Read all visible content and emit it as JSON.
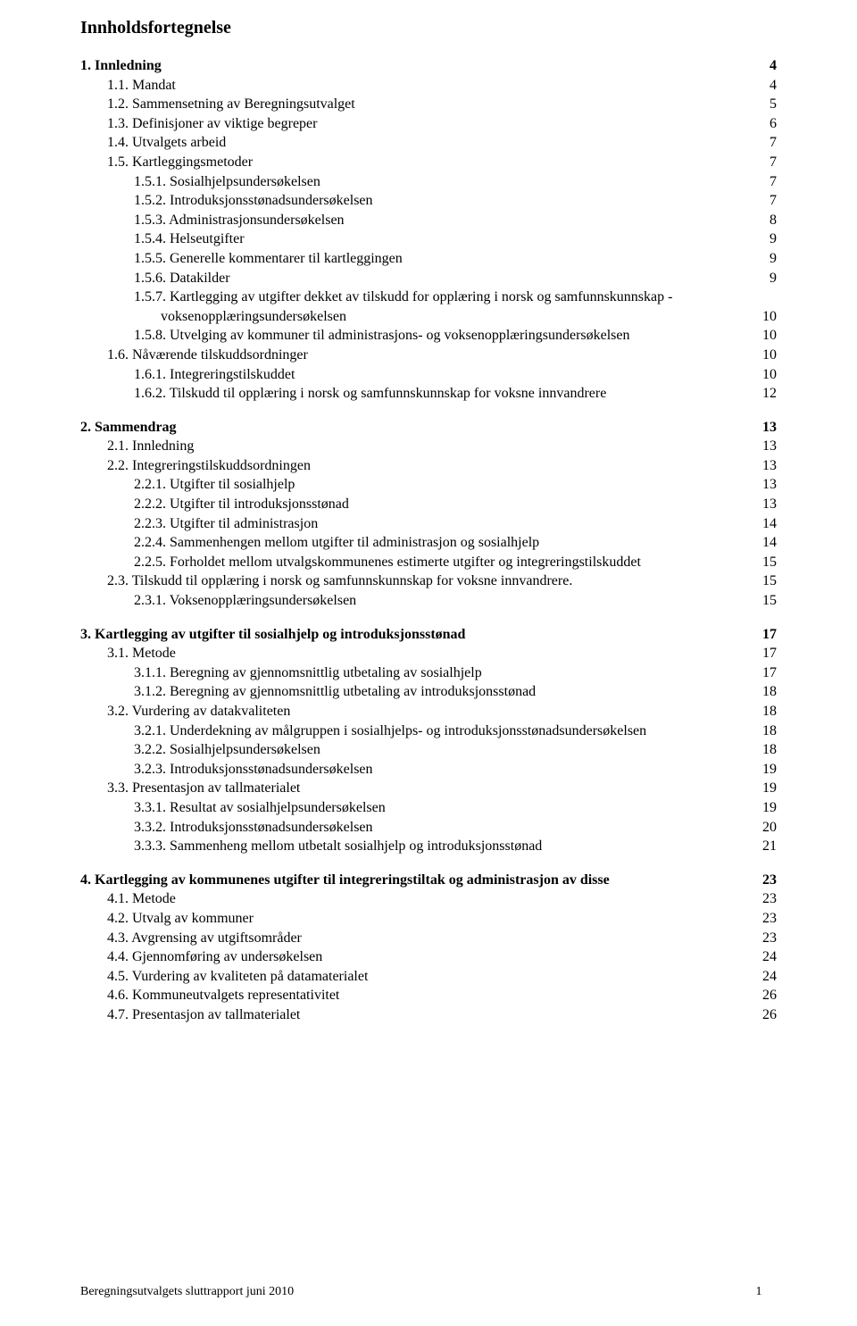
{
  "title": "Innholdsfortegnelse",
  "footer": {
    "text": "Beregningsutvalgets sluttrapport juni 2010",
    "page": "1"
  },
  "toc": [
    {
      "indent": 0,
      "bold": true,
      "label": "1. Innledning",
      "page": "4"
    },
    {
      "indent": 1,
      "bold": false,
      "label": "1.1. Mandat",
      "page": "4"
    },
    {
      "indent": 1,
      "bold": false,
      "label": "1.2. Sammensetning av Beregningsutvalget",
      "page": "5"
    },
    {
      "indent": 1,
      "bold": false,
      "label": "1.3. Definisjoner av viktige begreper",
      "page": "6"
    },
    {
      "indent": 1,
      "bold": false,
      "label": "1.4. Utvalgets arbeid",
      "page": "7"
    },
    {
      "indent": 1,
      "bold": false,
      "label": "1.5. Kartleggingsmetoder",
      "page": "7"
    },
    {
      "indent": 2,
      "bold": false,
      "label": "1.5.1. Sosialhjelpsundersøkelsen",
      "page": "7"
    },
    {
      "indent": 2,
      "bold": false,
      "label": "1.5.2. Introduksjonsstønadsundersøkelsen",
      "page": "7"
    },
    {
      "indent": 2,
      "bold": false,
      "label": "1.5.3. Administrasjonsundersøkelsen",
      "page": "8"
    },
    {
      "indent": 2,
      "bold": false,
      "label": "1.5.4. Helseutgifter",
      "page": "9"
    },
    {
      "indent": 2,
      "bold": false,
      "label": "1.5.5. Generelle kommentarer til kartleggingen",
      "page": "9"
    },
    {
      "indent": 2,
      "bold": false,
      "label": "1.5.6. Datakilder",
      "page": "9"
    },
    {
      "indent": 2,
      "bold": false,
      "label": "1.5.7. Kartlegging av utgifter dekket av tilskudd for opplæring i norsk og samfunnskunnskap - voksenopplæringsundersøkelsen",
      "page": "10",
      "wrap": true
    },
    {
      "indent": 2,
      "bold": false,
      "label": "1.5.8. Utvelging av kommuner til administrasjons- og voksenopplæringsundersøkelsen",
      "page": "10"
    },
    {
      "indent": 1,
      "bold": false,
      "label": "1.6. Nåværende tilskuddsordninger",
      "page": "10"
    },
    {
      "indent": 2,
      "bold": false,
      "label": "1.6.1. Integreringstilskuddet",
      "page": "10"
    },
    {
      "indent": 2,
      "bold": false,
      "label": "1.6.2. Tilskudd til opplæring i norsk og samfunnskunnskap for voksne innvandrere",
      "page": "12"
    },
    {
      "gap": true
    },
    {
      "indent": 0,
      "bold": true,
      "label": "2. Sammendrag",
      "page": "13"
    },
    {
      "indent": 1,
      "bold": false,
      "label": "2.1. Innledning",
      "page": "13"
    },
    {
      "indent": 1,
      "bold": false,
      "label": "2.2. Integreringstilskuddsordningen",
      "page": "13"
    },
    {
      "indent": 2,
      "bold": false,
      "label": "2.2.1. Utgifter til sosialhjelp",
      "page": "13"
    },
    {
      "indent": 2,
      "bold": false,
      "label": "2.2.2. Utgifter til introduksjonsstønad",
      "page": "13"
    },
    {
      "indent": 2,
      "bold": false,
      "label": "2.2.3. Utgifter til administrasjon",
      "page": "14"
    },
    {
      "indent": 2,
      "bold": false,
      "label": "2.2.4. Sammenhengen mellom utgifter til administrasjon og sosialhjelp",
      "page": "14"
    },
    {
      "indent": 2,
      "bold": false,
      "label": "2.2.5. Forholdet mellom utvalgskommunenes estimerte utgifter og integreringstilskuddet",
      "page": "15"
    },
    {
      "indent": 1,
      "bold": false,
      "label": "2.3. Tilskudd til opplæring i norsk og samfunnskunnskap for voksne innvandrere.",
      "page": "15"
    },
    {
      "indent": 2,
      "bold": false,
      "label": "2.3.1. Voksenopplæringsundersøkelsen",
      "page": "15"
    },
    {
      "gap": true
    },
    {
      "indent": 0,
      "bold": true,
      "label": "3. Kartlegging av utgifter til sosialhjelp og introduksjonsstønad",
      "page": "17"
    },
    {
      "indent": 1,
      "bold": false,
      "label": "3.1. Metode",
      "page": "17"
    },
    {
      "indent": 2,
      "bold": false,
      "label": "3.1.1. Beregning av gjennomsnittlig utbetaling av sosialhjelp",
      "page": "17"
    },
    {
      "indent": 2,
      "bold": false,
      "label": "3.1.2. Beregning av gjennomsnittlig utbetaling av introduksjonsstønad",
      "page": "18"
    },
    {
      "indent": 1,
      "bold": false,
      "label": "3.2. Vurdering av datakvaliteten",
      "page": "18"
    },
    {
      "indent": 2,
      "bold": false,
      "label": "3.2.1. Underdekning av målgruppen i sosialhjelps- og introduksjonsstønadsundersøkelsen",
      "page": "18"
    },
    {
      "indent": 2,
      "bold": false,
      "label": "3.2.2. Sosialhjelpsundersøkelsen",
      "page": "18"
    },
    {
      "indent": 2,
      "bold": false,
      "label": "3.2.3. Introduksjonsstønadsundersøkelsen",
      "page": "19"
    },
    {
      "indent": 1,
      "bold": false,
      "label": "3.3. Presentasjon av tallmaterialet",
      "page": "19"
    },
    {
      "indent": 2,
      "bold": false,
      "label": "3.3.1. Resultat av sosialhjelpsundersøkelsen",
      "page": "19"
    },
    {
      "indent": 2,
      "bold": false,
      "label": "3.3.2. Introduksjonsstønadsundersøkelsen",
      "page": "20"
    },
    {
      "indent": 2,
      "bold": false,
      "label": "3.3.3. Sammenheng mellom utbetalt sosialhjelp og introduksjonsstønad",
      "page": "21"
    },
    {
      "gap": true
    },
    {
      "indent": 0,
      "bold": true,
      "label": "4. Kartlegging av kommunenes utgifter til integreringstiltak og administrasjon av disse",
      "page": "23"
    },
    {
      "indent": 1,
      "bold": false,
      "label": "4.1. Metode",
      "page": "23"
    },
    {
      "indent": 1,
      "bold": false,
      "label": "4.2. Utvalg av kommuner",
      "page": "23"
    },
    {
      "indent": 1,
      "bold": false,
      "label": "4.3. Avgrensing av utgiftsområder",
      "page": "23"
    },
    {
      "indent": 1,
      "bold": false,
      "label": "4.4. Gjennomføring av undersøkelsen",
      "page": "24"
    },
    {
      "indent": 1,
      "bold": false,
      "label": "4.5. Vurdering av kvaliteten på datamaterialet",
      "page": "24"
    },
    {
      "indent": 1,
      "bold": false,
      "label": "4.6. Kommuneutvalgets representativitet",
      "page": "26"
    },
    {
      "indent": 1,
      "bold": false,
      "label": "4.7. Presentasjon av tallmaterialet",
      "page": "26"
    }
  ]
}
